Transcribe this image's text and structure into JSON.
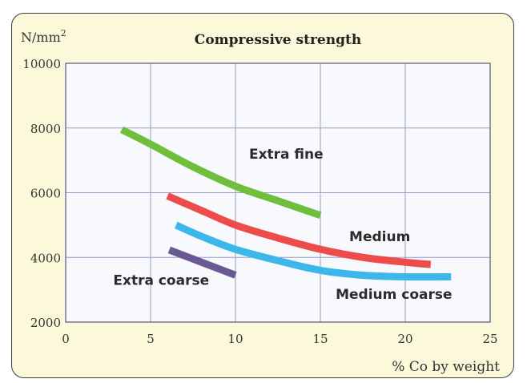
{
  "chart_data": {
    "type": "line",
    "title": "Compressive strength",
    "ylabel": "N/mm2",
    "ylabel_base": "N/mm",
    "ylabel_sup": "2",
    "xlabel": "% Co by weight",
    "xlim": [
      0,
      25
    ],
    "ylim": [
      2000,
      10000
    ],
    "x_ticks": [
      0,
      5,
      10,
      15,
      20,
      25
    ],
    "y_ticks": [
      2000,
      4000,
      6000,
      8000,
      10000
    ],
    "grid": true,
    "plot_background": "#f7f9fc",
    "frame_background": "#fbf9d9",
    "grid_color": "#9c9cc6",
    "series": [
      {
        "name": "Extra fine",
        "color": "#6fbf3c",
        "points": [
          [
            3.3,
            7950
          ],
          [
            5,
            7500
          ],
          [
            7.5,
            6800
          ],
          [
            10,
            6200
          ],
          [
            12.5,
            5750
          ],
          [
            15,
            5300
          ]
        ]
      },
      {
        "name": "Medium",
        "color": "#ee4b4b",
        "points": [
          [
            6,
            5900
          ],
          [
            8,
            5450
          ],
          [
            10,
            5000
          ],
          [
            12.5,
            4600
          ],
          [
            15,
            4250
          ],
          [
            17.5,
            4000
          ],
          [
            20,
            3850
          ],
          [
            21.5,
            3780
          ]
        ]
      },
      {
        "name": "Medium coarse",
        "color": "#3db7ea",
        "points": [
          [
            6.5,
            5000
          ],
          [
            8,
            4650
          ],
          [
            10,
            4250
          ],
          [
            12.5,
            3900
          ],
          [
            15,
            3600
          ],
          [
            17.5,
            3450
          ],
          [
            20,
            3400
          ],
          [
            22.7,
            3400
          ]
        ]
      },
      {
        "name": "Extra coarse",
        "color": "#6a5a94",
        "points": [
          [
            6.1,
            4230
          ],
          [
            10,
            3450
          ]
        ]
      }
    ],
    "annotations": [
      {
        "text": "Extra fine",
        "x": 10.8,
        "y": 7050
      },
      {
        "text": "Medium",
        "x": 16.7,
        "y": 4500
      },
      {
        "text": "Medium coarse",
        "x": 15.9,
        "y": 2720
      },
      {
        "text": "Extra coarse",
        "x": 2.8,
        "y": 3150
      }
    ]
  }
}
